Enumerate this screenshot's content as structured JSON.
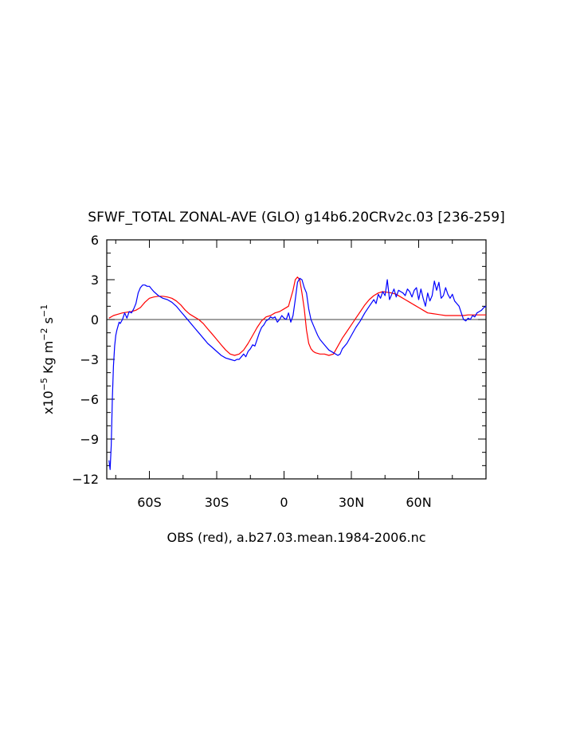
{
  "chart_data": {
    "type": "line",
    "title": "SFWF_TOTAL ZONAL-AVE (GLO) g14b6.20CRv2c.03 [236-259]",
    "xlabel": "OBS (red), a.b27.03.mean.1984-2006.nc",
    "ylabel": {
      "prefix": "x10",
      "prefix_exp": "−5",
      "unit1": " Kg m",
      "unit1_exp": "−2",
      "unit2": " s",
      "unit2_exp": "−1"
    },
    "xlim": [
      -79,
      90
    ],
    "ylim": [
      -12,
      6
    ],
    "x_ticks": [
      -60,
      -30,
      0,
      30,
      60
    ],
    "x_tick_labels": [
      "60S",
      "30S",
      "0",
      "30N",
      "60N"
    ],
    "y_ticks": [
      -12,
      -9,
      -6,
      -3,
      0,
      3,
      6
    ],
    "y_tick_labels": [
      "−12",
      "−9",
      "−6",
      "−3",
      "0",
      "3",
      "6"
    ],
    "zero_line": true,
    "grid": false,
    "legend": "none",
    "series": [
      {
        "color": "#ff0000",
        "x": [
          -78,
          -76,
          -74,
          -72,
          -70,
          -68,
          -66,
          -64,
          -62,
          -60,
          -58,
          -56,
          -54,
          -52,
          -50,
          -48,
          -46,
          -44,
          -42,
          -40,
          -38,
          -36,
          -34,
          -32,
          -30,
          -28,
          -26,
          -24,
          -22,
          -20,
          -18,
          -16,
          -14,
          -12,
          -10,
          -8,
          -6,
          -4,
          -2,
          0,
          2,
          4,
          5,
          6,
          7,
          8,
          9,
          10,
          11,
          12,
          13,
          14,
          16,
          18,
          20,
          22,
          24,
          26,
          28,
          30,
          32,
          34,
          36,
          38,
          40,
          42,
          44,
          46,
          48,
          50,
          52,
          54,
          56,
          58,
          60,
          62,
          64,
          66,
          68,
          70,
          72,
          74,
          76,
          78,
          80,
          82,
          84,
          86,
          88,
          90
        ],
        "y": [
          0.1,
          0.3,
          0.4,
          0.5,
          0.55,
          0.6,
          0.7,
          0.9,
          1.3,
          1.6,
          1.7,
          1.75,
          1.75,
          1.7,
          1.6,
          1.4,
          1.1,
          0.7,
          0.4,
          0.2,
          0.0,
          -0.3,
          -0.7,
          -1.1,
          -1.5,
          -1.9,
          -2.3,
          -2.6,
          -2.7,
          -2.6,
          -2.3,
          -1.8,
          -1.2,
          -0.6,
          -0.1,
          0.2,
          0.3,
          0.5,
          0.6,
          0.8,
          1.0,
          2.2,
          3.0,
          3.2,
          3.0,
          2.0,
          0.8,
          -0.8,
          -1.8,
          -2.2,
          -2.4,
          -2.5,
          -2.6,
          -2.6,
          -2.7,
          -2.6,
          -2.0,
          -1.4,
          -0.9,
          -0.4,
          0.1,
          0.6,
          1.1,
          1.5,
          1.8,
          2.0,
          2.1,
          2.05,
          2.0,
          1.9,
          1.7,
          1.5,
          1.3,
          1.1,
          0.9,
          0.7,
          0.5,
          0.45,
          0.4,
          0.35,
          0.3,
          0.3,
          0.3,
          0.3,
          0.3,
          0.35,
          0.35,
          0.35,
          0.35,
          0.35
        ]
      },
      {
        "color": "#0000ff",
        "x": [
          -78,
          -77.5,
          -77,
          -76.5,
          -76,
          -75.5,
          -75,
          -74.5,
          -74,
          -73.5,
          -73,
          -72,
          -71,
          -70,
          -69,
          -68,
          -67,
          -66,
          -65,
          -64,
          -63,
          -62,
          -61,
          -60,
          -59,
          -58,
          -56,
          -54,
          -52,
          -50,
          -48,
          -46,
          -44,
          -42,
          -40,
          -38,
          -36,
          -34,
          -32,
          -30,
          -28,
          -26,
          -24,
          -22,
          -21,
          -20,
          -19,
          -18,
          -17,
          -16,
          -15,
          -14,
          -13,
          -12,
          -11,
          -10,
          -9,
          -8,
          -7,
          -6,
          -5,
          -4,
          -3,
          -2,
          -1,
          0,
          1,
          2,
          3,
          4,
          5,
          6,
          7,
          8,
          9,
          10,
          11,
          12,
          13,
          14,
          15,
          16,
          18,
          20,
          22,
          24,
          25,
          26,
          28,
          30,
          32,
          34,
          36,
          38,
          40,
          41,
          42,
          43,
          44,
          45,
          46,
          47,
          48,
          49,
          50,
          51,
          52,
          53,
          54,
          55,
          56,
          57,
          58,
          59,
          60,
          61,
          62,
          63,
          64,
          65,
          66,
          67,
          68,
          69,
          70,
          71,
          72,
          73,
          74,
          75,
          76,
          77,
          78,
          79,
          80,
          81,
          82,
          83,
          84,
          85,
          86,
          87,
          88,
          89,
          90
        ],
        "y": [
          -10.6,
          -11.3,
          -9.5,
          -6.0,
          -3.5,
          -2.0,
          -1.2,
          -0.8,
          -0.5,
          -0.2,
          -0.3,
          0.0,
          0.5,
          0.1,
          0.6,
          0.5,
          0.8,
          1.2,
          2.0,
          2.4,
          2.6,
          2.6,
          2.5,
          2.5,
          2.3,
          2.1,
          1.8,
          1.6,
          1.5,
          1.3,
          1.0,
          0.6,
          0.2,
          -0.2,
          -0.6,
          -1.0,
          -1.4,
          -1.8,
          -2.1,
          -2.4,
          -2.7,
          -2.9,
          -3.0,
          -3.1,
          -3.0,
          -3.0,
          -2.8,
          -2.6,
          -2.8,
          -2.4,
          -2.2,
          -1.9,
          -2.0,
          -1.5,
          -1.0,
          -0.6,
          -0.4,
          -0.1,
          0.0,
          0.2,
          0.1,
          0.2,
          -0.2,
          0.0,
          0.3,
          0.1,
          0.0,
          0.5,
          -0.2,
          0.3,
          1.5,
          2.8,
          3.1,
          3.0,
          2.4,
          2.0,
          0.8,
          0.0,
          -0.4,
          -0.8,
          -1.2,
          -1.5,
          -1.9,
          -2.3,
          -2.5,
          -2.7,
          -2.6,
          -2.2,
          -1.8,
          -1.2,
          -0.6,
          -0.1,
          0.5,
          1.0,
          1.5,
          1.2,
          1.9,
          1.6,
          2.1,
          1.8,
          3.0,
          1.5,
          1.9,
          2.3,
          1.7,
          2.2,
          2.1,
          2.0,
          1.8,
          2.3,
          2.1,
          1.7,
          2.2,
          2.4,
          1.5,
          2.3,
          1.6,
          1.0,
          2.0,
          1.4,
          1.8,
          2.9,
          2.2,
          2.8,
          1.6,
          1.8,
          2.4,
          1.9,
          1.6,
          1.9,
          1.4,
          1.2,
          1.0,
          0.5,
          0.0,
          -0.1,
          0.1,
          0.0,
          0.3,
          0.2,
          0.5,
          0.6,
          0.7,
          0.9,
          1.0
        ]
      }
    ]
  }
}
